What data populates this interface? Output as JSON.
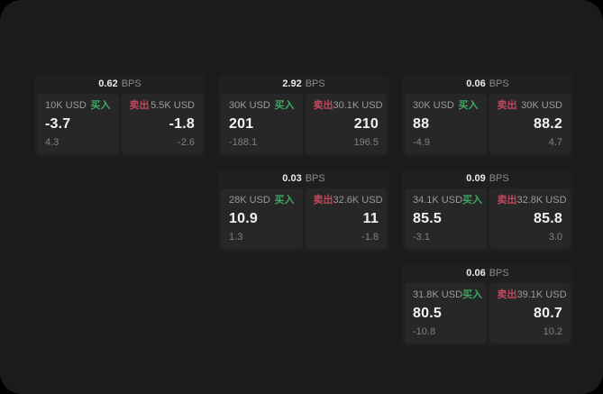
{
  "labels": {
    "bps": "BPS",
    "buy": "买入",
    "sell": "卖出"
  },
  "colors": {
    "window_bg": "#1b1b1b",
    "card_bg": "#1f1f1f",
    "panel_bg": "#272727",
    "buy_green": "#3fa763",
    "sell_red": "#c0475c"
  },
  "cards": [
    {
      "bps": "0.62",
      "buy": {
        "amount": "10K USD",
        "price": "-3.7",
        "delta": "4.3"
      },
      "sell": {
        "amount": "5.5K USD",
        "price": "-1.8",
        "delta": "-2.6"
      }
    },
    {
      "bps": "2.92",
      "buy": {
        "amount": "30K USD",
        "price": "201",
        "delta": "-188.1"
      },
      "sell": {
        "amount": "30.1K USD",
        "price": "210",
        "delta": "196.5"
      }
    },
    {
      "bps": "0.06",
      "buy": {
        "amount": "30K USD",
        "price": "88",
        "delta": "-4.9"
      },
      "sell": {
        "amount": "30K USD",
        "price": "88.2",
        "delta": "4.7"
      }
    },
    {
      "bps": "0.03",
      "buy": {
        "amount": "28K USD",
        "price": "10.9",
        "delta": "1.3"
      },
      "sell": {
        "amount": "32.6K USD",
        "price": "11",
        "delta": "-1.8"
      }
    },
    {
      "bps": "0.09",
      "buy": {
        "amount": "34.1K USD",
        "price": "85.5",
        "delta": "-3.1"
      },
      "sell": {
        "amount": "32.8K USD",
        "price": "85.8",
        "delta": "3.0"
      }
    },
    {
      "bps": "0.06",
      "buy": {
        "amount": "31.8K USD",
        "price": "80.5",
        "delta": "-10.8"
      },
      "sell": {
        "amount": "39.1K USD",
        "price": "80.7",
        "delta": "10.2"
      }
    }
  ]
}
